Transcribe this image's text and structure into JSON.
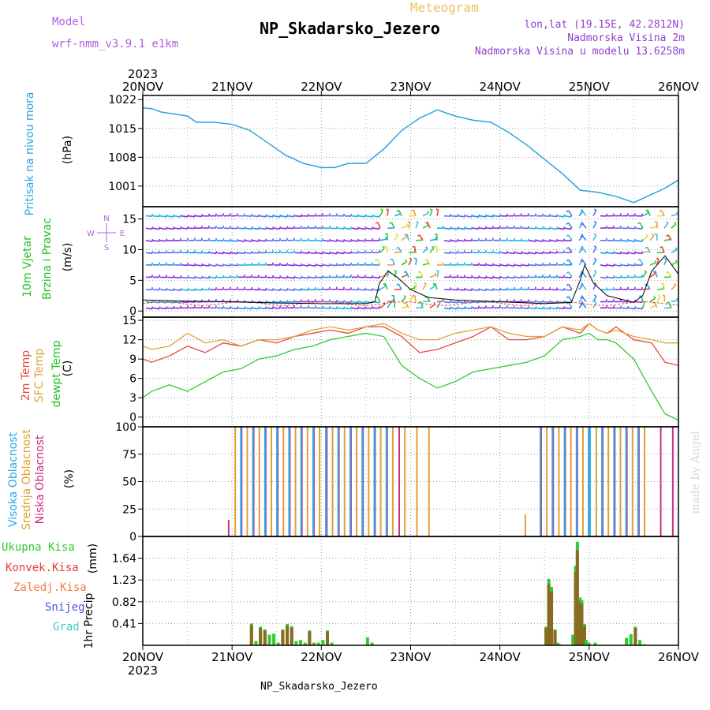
{
  "header": {
    "model_label": "Model",
    "model_name": "wrf-nmm_v3.9.1 e1km",
    "meteogram": "Meteogram",
    "station": "NP_Skadarsko_Jezero",
    "lonlat": "lon,lat (19.15E, 42.2812N)",
    "elevation": "Nadmorska Visina 2m",
    "model_elevation": "Nadmorska Visina u modelu 13.6258m",
    "bottom_station": "NP_Skadarsko_Jezero",
    "watermark": "made by Angel"
  },
  "colors": {
    "pressure": "#2aa4e0",
    "temp2m": "#e8483c",
    "sfc": "#e0a040",
    "dewpt": "#30cc30",
    "high_cloud": "#28a8e8",
    "mid_cloud": "#e0a030",
    "low_cloud": "#c83080",
    "precip_total": "#30cc30",
    "precip_conv": "#e83838",
    "precip_frz": "#f08040",
    "snow": "#5050e0",
    "graupel": "#40c8c8"
  },
  "chart_data": [
    {
      "type": "line",
      "name_label": "Pritisak na nivou mora",
      "ylabel": "(hPa)",
      "x_ticks": [
        "20NOV",
        "21NOV",
        "22NOV",
        "23NOV",
        "24NOV",
        "25NOV",
        "26NOV"
      ],
      "year": "2023",
      "ylim": [
        996,
        1023
      ],
      "yticks": [
        1001,
        1008,
        1015,
        1022
      ],
      "x": [
        0,
        0.1,
        0.2,
        0.35,
        0.5,
        0.6,
        0.8,
        1.0,
        1.2,
        1.4,
        1.6,
        1.8,
        2.0,
        2.15,
        2.3,
        2.5,
        2.7,
        2.9,
        3.1,
        3.3,
        3.5,
        3.7,
        3.9,
        4.1,
        4.3,
        4.5,
        4.7,
        4.9,
        5.1,
        5.3,
        5.5,
        5.6,
        5.7,
        5.85,
        6.0
      ],
      "series": [
        {
          "values": [
            1020,
            1019.8,
            1019,
            1018.5,
            1018,
            1016.5,
            1016.5,
            1016,
            1014.5,
            1011.5,
            1008.5,
            1006.5,
            1005.5,
            1005.5,
            1006.5,
            1006.5,
            1010,
            1014.5,
            1017.5,
            1019.5,
            1018,
            1017,
            1016.5,
            1014,
            1011,
            1007.5,
            1004,
            1000,
            999.5,
            998.5,
            997,
            998,
            999,
            1000.5,
            1002.5
          ]
        }
      ]
    },
    {
      "type": "line",
      "name_label": [
        "10m Vjetar",
        "Brzina i Pravac"
      ],
      "ylabel": "(m/s)",
      "compass": [
        "N",
        "W",
        "E",
        "S"
      ],
      "ylim": [
        -1,
        17
      ],
      "yticks": [
        0,
        5,
        10,
        15
      ],
      "x": [
        0,
        0.5,
        1.0,
        1.5,
        2.0,
        2.5,
        2.6,
        2.65,
        2.75,
        2.85,
        3.0,
        3.2,
        3.5,
        4.0,
        4.5,
        4.8,
        4.9,
        4.95,
        5.05,
        5.2,
        5.5,
        5.6,
        5.7,
        5.85,
        6.0
      ],
      "series": [
        {
          "values": [
            1.8,
            1.6,
            1.5,
            1.3,
            1.2,
            1.2,
            1.5,
            4.5,
            6.5,
            5.5,
            3.5,
            2.2,
            1.8,
            1.5,
            1.2,
            1.4,
            5,
            7.5,
            4.5,
            2.5,
            1.4,
            2.5,
            6.5,
            9,
            6
          ]
        }
      ]
    },
    {
      "type": "line",
      "name_label": [
        "2m Temp",
        "SFC Temp",
        "dewpt Temp"
      ],
      "ylabel": "(C)",
      "ylim": [
        -1.5,
        15.5
      ],
      "yticks": [
        0,
        3,
        6,
        9,
        12,
        15
      ],
      "x": [
        0,
        0.1,
        0.3,
        0.5,
        0.7,
        0.9,
        1.1,
        1.3,
        1.5,
        1.7,
        1.9,
        2.1,
        2.3,
        2.5,
        2.7,
        2.9,
        3.1,
        3.3,
        3.5,
        3.7,
        3.9,
        4.1,
        4.3,
        4.5,
        4.7,
        4.9,
        5.0,
        5.1,
        5.2,
        5.3,
        5.5,
        5.7,
        5.85,
        6.0
      ],
      "series": [
        {
          "name": "2m Temp",
          "values": [
            9,
            8.5,
            9.5,
            11,
            10,
            11.5,
            11,
            12,
            11.5,
            12.5,
            13,
            13.5,
            13,
            14,
            14,
            12.5,
            10,
            10.5,
            11.5,
            12.5,
            14,
            12,
            12,
            12.5,
            14,
            13,
            14.5,
            13.5,
            13,
            14,
            12,
            11.5,
            8.5,
            8
          ]
        },
        {
          "name": "SFC Temp",
          "values": [
            11,
            10.5,
            11,
            13,
            11.5,
            12,
            11,
            12,
            12,
            12.5,
            13.5,
            14,
            13.5,
            14,
            14.5,
            13,
            12,
            12,
            13,
            13.5,
            14,
            13,
            12.5,
            12.5,
            14,
            13.5,
            14.5,
            13.5,
            13,
            13.5,
            12.5,
            12,
            11.5,
            11.5
          ]
        },
        {
          "name": "dewpt Temp",
          "values": [
            3,
            4,
            5,
            4,
            5.5,
            7,
            7.5,
            9,
            9.5,
            10.5,
            11,
            12,
            12.5,
            13,
            12.5,
            8,
            6,
            4.5,
            5.5,
            7,
            7.5,
            8,
            8.5,
            9.5,
            12,
            12.5,
            13,
            12,
            12,
            11.5,
            9,
            4,
            0.5,
            -0.5
          ]
        }
      ]
    },
    {
      "type": "bar",
      "name_label": [
        "Visoka Oblacnost",
        "Srednja Oblacnost",
        "Niska Oblacnost"
      ],
      "ylabel": "(%)",
      "ylim": [
        0,
        100
      ],
      "yticks": [
        0,
        25,
        50,
        75,
        100
      ],
      "segments": [
        {
          "from": 0.9,
          "to": 0.95,
          "values": [
            0,
            0,
            15
          ]
        },
        {
          "from": 1.0,
          "to": 2.0,
          "values": [
            100,
            100,
            100
          ]
        },
        {
          "from": 2.0,
          "to": 2.85,
          "values": [
            100,
            100,
            100
          ]
        },
        {
          "from": 2.9,
          "to": 3.3,
          "values": [
            0,
            100,
            0
          ]
        },
        {
          "from": 4.25,
          "to": 4.35,
          "values": [
            0,
            20,
            0
          ]
        },
        {
          "from": 4.4,
          "to": 5.0,
          "values": [
            100,
            100,
            100
          ]
        },
        {
          "from": 5.0,
          "to": 5.6,
          "values": [
            100,
            100,
            100
          ]
        },
        {
          "from": 5.65,
          "to": 5.95,
          "values": [
            0,
            0,
            100
          ]
        }
      ]
    },
    {
      "type": "bar",
      "name_label": "1hr Precip",
      "ylabel": "(mm)",
      "legend": [
        "Ukupna Kisa",
        "Konvek.Kisa",
        "Zaledj.Kisa",
        "Snijeg",
        "Grad"
      ],
      "ylim": [
        0,
        2.05
      ],
      "yticks": [
        0.41,
        0.82,
        1.23,
        1.64
      ],
      "x": [
        1.2,
        1.25,
        1.3,
        1.35,
        1.4,
        1.45,
        1.5,
        1.55,
        1.6,
        1.65,
        1.7,
        1.75,
        1.8,
        1.85,
        1.9,
        1.95,
        2.0,
        2.05,
        2.1,
        2.5,
        2.55,
        4.5,
        4.53,
        4.56,
        4.6,
        4.63,
        4.65,
        4.8,
        4.83,
        4.85,
        4.88,
        4.9,
        4.93,
        4.95,
        4.98,
        5.05,
        5.4,
        5.45,
        5.5,
        5.55,
        5.6
      ],
      "values": [
        0.41,
        0.08,
        0.35,
        0.3,
        0.2,
        0.22,
        0.05,
        0.3,
        0.4,
        0.36,
        0.08,
        0.1,
        0.05,
        0.28,
        0.05,
        0.05,
        0.1,
        0.28,
        0.05,
        0.15,
        0.05,
        0.35,
        1.25,
        1.1,
        0.3,
        0.05,
        0.02,
        0.2,
        1.5,
        1.95,
        0.9,
        0.85,
        0.4,
        0.1,
        0.05,
        0.05,
        0.14,
        0.21,
        0.35,
        0.1,
        0.02
      ]
    }
  ]
}
